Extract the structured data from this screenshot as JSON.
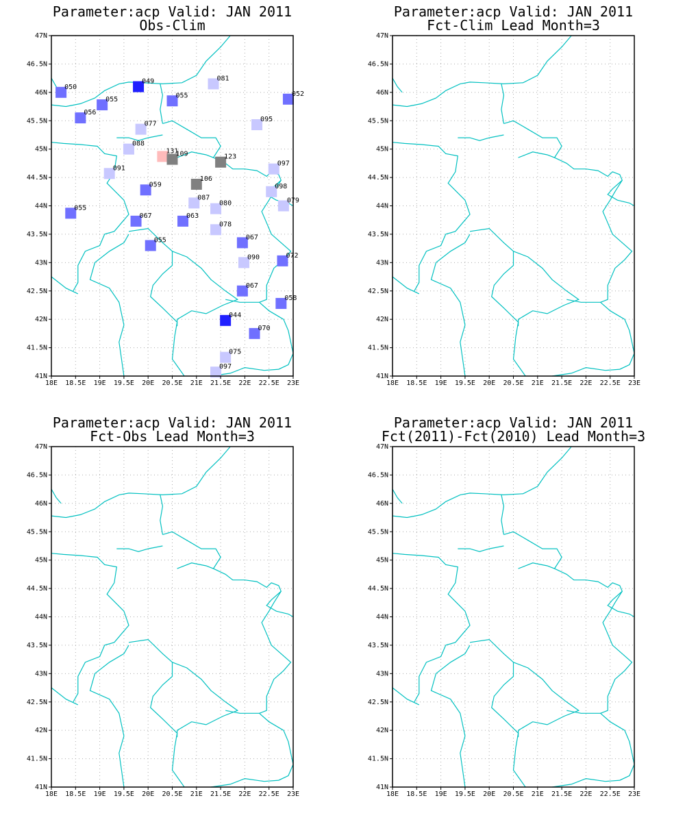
{
  "colors": {
    "border": "#00c0c0",
    "grid": "#aaaaaa",
    "frame": "#000000",
    "station_label": "#000000"
  },
  "axes": {
    "x_ticks": [
      "18E",
      "18.5E",
      "19E",
      "19.5E",
      "20E",
      "20.5E",
      "21E",
      "21.5E",
      "22E",
      "22.5E",
      "23E"
    ],
    "y_ticks": [
      "41N",
      "41.5N",
      "42N",
      "42.5N",
      "43N",
      "43.5N",
      "44N",
      "44.5N",
      "45N",
      "45.5N",
      "46N",
      "46.5N",
      "47N"
    ],
    "lon_range": [
      18,
      23
    ],
    "lat_range": [
      41,
      47
    ],
    "grid": "dotted"
  },
  "panels": [
    {
      "id": "obs-clim",
      "title_line1": "Parameter:acp Valid: JAN 2011",
      "title_line2": "Obs-Clim",
      "stations": [
        {
          "lon": 18.2,
          "lat": 46.0,
          "label": "050",
          "color": "#7070ff"
        },
        {
          "lon": 19.8,
          "lat": 46.1,
          "label": "049",
          "color": "#2020ff"
        },
        {
          "lon": 21.35,
          "lat": 46.15,
          "label": "081",
          "color": "#c8c8ff"
        },
        {
          "lon": 22.9,
          "lat": 45.88,
          "label": "052",
          "color": "#7070ff"
        },
        {
          "lon": 19.05,
          "lat": 45.78,
          "label": "055",
          "color": "#7070ff"
        },
        {
          "lon": 20.5,
          "lat": 45.85,
          "label": "055",
          "color": "#7070ff"
        },
        {
          "lon": 18.6,
          "lat": 45.55,
          "label": "056",
          "color": "#7070ff"
        },
        {
          "lon": 19.85,
          "lat": 45.35,
          "label": "077",
          "color": "#c8c8ff"
        },
        {
          "lon": 22.25,
          "lat": 45.43,
          "label": "095",
          "color": "#c8c8ff"
        },
        {
          "lon": 19.6,
          "lat": 45.0,
          "label": "088",
          "color": "#c8c8ff"
        },
        {
          "lon": 20.3,
          "lat": 44.87,
          "label": "131",
          "color": "#ffbbbb"
        },
        {
          "lon": 20.5,
          "lat": 44.82,
          "label": "109",
          "color": "#808080"
        },
        {
          "lon": 21.5,
          "lat": 44.77,
          "label": "123",
          "color": "#808080"
        },
        {
          "lon": 22.6,
          "lat": 44.65,
          "label": "097",
          "color": "#c8c8ff"
        },
        {
          "lon": 19.2,
          "lat": 44.57,
          "label": "091",
          "color": "#c8c8ff"
        },
        {
          "lon": 21.0,
          "lat": 44.38,
          "label": "106",
          "color": "#808080"
        },
        {
          "lon": 19.95,
          "lat": 44.28,
          "label": "059",
          "color": "#7070ff"
        },
        {
          "lon": 22.55,
          "lat": 44.25,
          "label": "098",
          "color": "#c8c8ff"
        },
        {
          "lon": 20.95,
          "lat": 44.05,
          "label": "087",
          "color": "#c8c8ff"
        },
        {
          "lon": 21.4,
          "lat": 43.95,
          "label": "080",
          "color": "#c8c8ff"
        },
        {
          "lon": 22.8,
          "lat": 44.0,
          "label": "079",
          "color": "#c8c8ff"
        },
        {
          "lon": 18.4,
          "lat": 43.87,
          "label": "055",
          "color": "#7070ff"
        },
        {
          "lon": 19.75,
          "lat": 43.73,
          "label": "067",
          "color": "#7070ff"
        },
        {
          "lon": 20.72,
          "lat": 43.73,
          "label": "063",
          "color": "#7070ff"
        },
        {
          "lon": 21.4,
          "lat": 43.58,
          "label": "078",
          "color": "#c8c8ff"
        },
        {
          "lon": 21.95,
          "lat": 43.35,
          "label": "067",
          "color": "#7070ff"
        },
        {
          "lon": 20.05,
          "lat": 43.3,
          "label": "055",
          "color": "#7070ff"
        },
        {
          "lon": 21.98,
          "lat": 43.0,
          "label": "090",
          "color": "#c8c8ff"
        },
        {
          "lon": 22.78,
          "lat": 43.03,
          "label": "072",
          "color": "#7070ff"
        },
        {
          "lon": 21.95,
          "lat": 42.5,
          "label": "067",
          "color": "#7070ff"
        },
        {
          "lon": 22.75,
          "lat": 42.28,
          "label": "058",
          "color": "#7070ff"
        },
        {
          "lon": 21.6,
          "lat": 41.98,
          "label": "044",
          "color": "#2020ff"
        },
        {
          "lon": 22.2,
          "lat": 41.75,
          "label": "070",
          "color": "#7070ff"
        },
        {
          "lon": 21.6,
          "lat": 41.33,
          "label": "075",
          "color": "#c8c8ff"
        },
        {
          "lon": 21.4,
          "lat": 41.07,
          "label": "097",
          "color": "#c8c8ff"
        }
      ]
    },
    {
      "id": "fct-clim",
      "title_line1": "Parameter:acp Valid: JAN 2011",
      "title_line2": "Fct-Clim Lead Month=3",
      "stations": []
    },
    {
      "id": "fct-obs",
      "title_line1": "Parameter:acp Valid: JAN 2011",
      "title_line2": "Fct-Obs Lead Month=3",
      "stations": []
    },
    {
      "id": "fct-fct",
      "title_line1": "Parameter:acp Valid: JAN 2011",
      "title_line2": "Fct(2011)-Fct(2010) Lead Month=3",
      "stations": []
    }
  ]
}
